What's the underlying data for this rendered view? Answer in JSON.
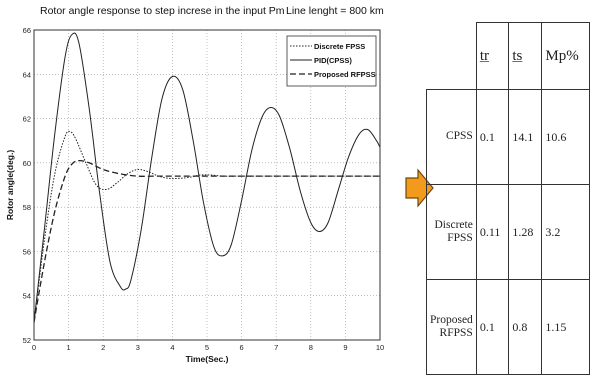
{
  "chart_data": {
    "type": "line",
    "title": "Rotor angle response to step increse in the input Pm",
    "annotation": "Line lenght = 800 km",
    "xlabel": "Time(Sec.)",
    "ylabel": "Rotor angle(deg.)",
    "xlim": [
      0,
      10
    ],
    "ylim": [
      52,
      66
    ],
    "xticks": [
      0,
      1,
      2,
      3,
      4,
      5,
      6,
      7,
      8,
      9,
      10
    ],
    "yticks": [
      52,
      54,
      56,
      58,
      60,
      62,
      64,
      66
    ],
    "grid": true,
    "legend_position": "top-right",
    "series": [
      {
        "name": "Discrete FPSS",
        "style": "dotted",
        "x": [
          0,
          0.3,
          0.6,
          0.9,
          1.05,
          1.2,
          1.5,
          1.8,
          2.1,
          2.4,
          2.7,
          3.0,
          3.3,
          3.6,
          3.9,
          4.2,
          4.5,
          4.8,
          5.1,
          5.5,
          6.0,
          7.0,
          8.0,
          9.0,
          10.0
        ],
        "y": [
          52.8,
          56.5,
          59.5,
          61.2,
          61.4,
          61.1,
          60.0,
          59.0,
          58.8,
          59.1,
          59.5,
          59.7,
          59.6,
          59.4,
          59.3,
          59.3,
          59.35,
          59.45,
          59.45,
          59.4,
          59.4,
          59.4,
          59.4,
          59.4,
          59.4
        ]
      },
      {
        "name": "PID(CPSS)",
        "style": "solid",
        "x": [
          0,
          0.3,
          0.6,
          0.9,
          1.1,
          1.3,
          1.6,
          1.9,
          2.2,
          2.5,
          2.65,
          2.8,
          3.1,
          3.4,
          3.7,
          4.0,
          4.3,
          4.6,
          4.9,
          5.2,
          5.45,
          5.7,
          6.0,
          6.3,
          6.6,
          6.85,
          7.1,
          7.4,
          7.7,
          8.0,
          8.25,
          8.5,
          8.8,
          9.1,
          9.4,
          9.65,
          9.9,
          10.0
        ],
        "y": [
          52.8,
          57.0,
          61.3,
          64.8,
          65.8,
          65.4,
          62.4,
          58.6,
          55.5,
          54.4,
          54.3,
          54.7,
          57.0,
          60.2,
          62.9,
          63.9,
          63.3,
          61.0,
          58.2,
          56.2,
          55.8,
          56.3,
          58.3,
          60.6,
          62.1,
          62.5,
          62.1,
          60.6,
          58.7,
          57.3,
          56.9,
          57.3,
          58.8,
          60.3,
          61.3,
          61.5,
          61.0,
          60.7
        ]
      },
      {
        "name": "Proposed RFPSS",
        "style": "dashed",
        "x": [
          0,
          0.3,
          0.6,
          0.9,
          1.1,
          1.3,
          1.6,
          2.0,
          2.5,
          3.0,
          3.5,
          4.0,
          5.0,
          6.0,
          7.0,
          8.0,
          9.0,
          10.0
        ],
        "y": [
          52.8,
          55.5,
          57.8,
          59.4,
          59.95,
          60.1,
          60.0,
          59.7,
          59.5,
          59.4,
          59.4,
          59.4,
          59.4,
          59.4,
          59.4,
          59.4,
          59.4,
          59.4
        ]
      }
    ]
  },
  "table": {
    "headers": [
      "tr",
      "ts",
      "Mp%"
    ],
    "rows": [
      {
        "label": "CPSS",
        "values": [
          "0.1",
          "14.1",
          "10.6"
        ]
      },
      {
        "label": "Discrete FPSS",
        "values": [
          "0.11",
          "1.28",
          "3.2"
        ]
      },
      {
        "label": "Proposed RFPSS",
        "values": [
          "0.1",
          "0.8",
          "1.15"
        ]
      }
    ]
  },
  "colors": {
    "arrow_fill": "#f39a1d",
    "arrow_stroke": "#6b4a0c",
    "line": "#222222",
    "grid": "#9a9a9a"
  },
  "icons": {
    "arrow": "right-arrow-icon"
  }
}
